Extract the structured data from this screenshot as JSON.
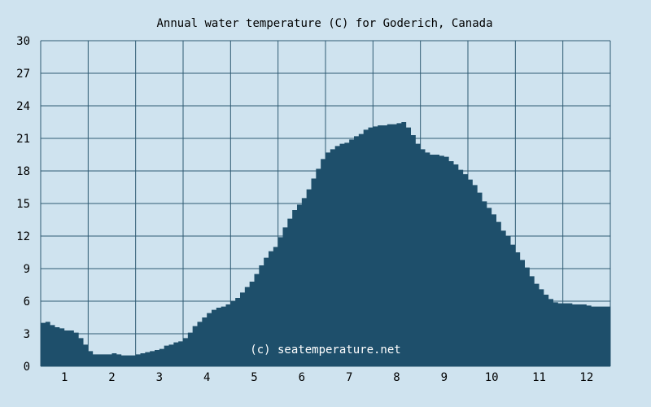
{
  "chart_data": {
    "type": "area",
    "title": "Annual water temperature (C) for Goderich, Canada",
    "xlabel": "",
    "ylabel": "",
    "x_ticks": [
      "1",
      "2",
      "3",
      "4",
      "5",
      "6",
      "7",
      "8",
      "9",
      "10",
      "11",
      "12"
    ],
    "y_ticks": [
      0,
      3,
      6,
      9,
      12,
      15,
      18,
      21,
      24,
      27,
      30
    ],
    "xlim": [
      0.5,
      12.5
    ],
    "ylim": [
      0,
      30
    ],
    "grid": true,
    "watermark": "(c) seatemperature.net",
    "colors": {
      "background": "#cfe3ef",
      "fill": "#1e4f6b",
      "grid": "#2f5b73"
    },
    "series": [
      {
        "x": [
          0.5,
          0.6,
          0.7,
          0.8,
          0.9,
          1.0,
          1.1,
          1.2,
          1.3,
          1.4,
          1.5,
          1.6,
          1.7,
          1.8,
          1.9,
          2.0,
          2.1,
          2.2,
          2.3,
          2.4,
          2.5,
          2.6,
          2.7,
          2.8,
          2.9,
          3.0,
          3.1,
          3.2,
          3.3,
          3.4,
          3.5,
          3.6,
          3.7,
          3.8,
          3.9,
          4.0,
          4.1,
          4.2,
          4.3,
          4.4,
          4.5,
          4.6,
          4.7,
          4.8,
          4.9,
          5.0,
          5.1,
          5.2,
          5.3,
          5.4,
          5.5,
          5.6,
          5.7,
          5.8,
          5.9,
          6.0,
          6.1,
          6.2,
          6.3,
          6.4,
          6.5,
          6.6,
          6.7,
          6.8,
          6.9,
          7.0,
          7.1,
          7.2,
          7.3,
          7.4,
          7.5,
          7.6,
          7.7,
          7.8,
          7.9,
          8.0,
          8.1,
          8.2,
          8.3,
          8.4,
          8.5,
          8.6,
          8.7,
          8.8,
          8.9,
          9.0,
          9.1,
          9.2,
          9.3,
          9.4,
          9.5,
          9.6,
          9.7,
          9.8,
          9.9,
          10.0,
          10.1,
          10.2,
          10.3,
          10.4,
          10.5,
          10.6,
          10.7,
          10.8,
          10.9,
          11.0,
          11.1,
          11.2,
          11.3,
          11.4,
          11.5,
          11.6,
          11.7,
          11.8,
          11.9,
          12.0,
          12.1,
          12.2,
          12.3,
          12.4,
          12.5
        ],
        "values": [
          4.0,
          4.1,
          3.8,
          3.6,
          3.5,
          3.3,
          3.3,
          3.1,
          2.6,
          2.0,
          1.4,
          1.1,
          1.1,
          1.1,
          1.1,
          1.2,
          1.1,
          1.0,
          1.0,
          1.0,
          1.1,
          1.2,
          1.3,
          1.4,
          1.5,
          1.6,
          1.9,
          2.0,
          2.2,
          2.3,
          2.6,
          3.1,
          3.7,
          4.1,
          4.5,
          4.9,
          5.2,
          5.4,
          5.5,
          5.7,
          6.0,
          6.3,
          6.8,
          7.3,
          7.8,
          8.5,
          9.3,
          10.0,
          10.6,
          11.0,
          11.9,
          12.8,
          13.6,
          14.4,
          14.9,
          15.5,
          16.3,
          17.3,
          18.2,
          19.1,
          19.7,
          20.0,
          20.3,
          20.5,
          20.6,
          20.9,
          21.2,
          21.4,
          21.8,
          22.0,
          22.1,
          22.2,
          22.2,
          22.3,
          22.3,
          22.4,
          22.5,
          22.0,
          21.3,
          20.5,
          20.0,
          19.7,
          19.5,
          19.5,
          19.4,
          19.3,
          18.9,
          18.6,
          18.1,
          17.7,
          17.2,
          16.7,
          16.0,
          15.2,
          14.6,
          14.0,
          13.3,
          12.5,
          12.0,
          11.2,
          10.5,
          9.8,
          9.1,
          8.3,
          7.6,
          7.1,
          6.6,
          6.2,
          5.9,
          5.8,
          5.8,
          5.8,
          5.7,
          5.7,
          5.7,
          5.6,
          5.5,
          5.5,
          5.5,
          5.5,
          5.4
        ]
      }
    ]
  }
}
